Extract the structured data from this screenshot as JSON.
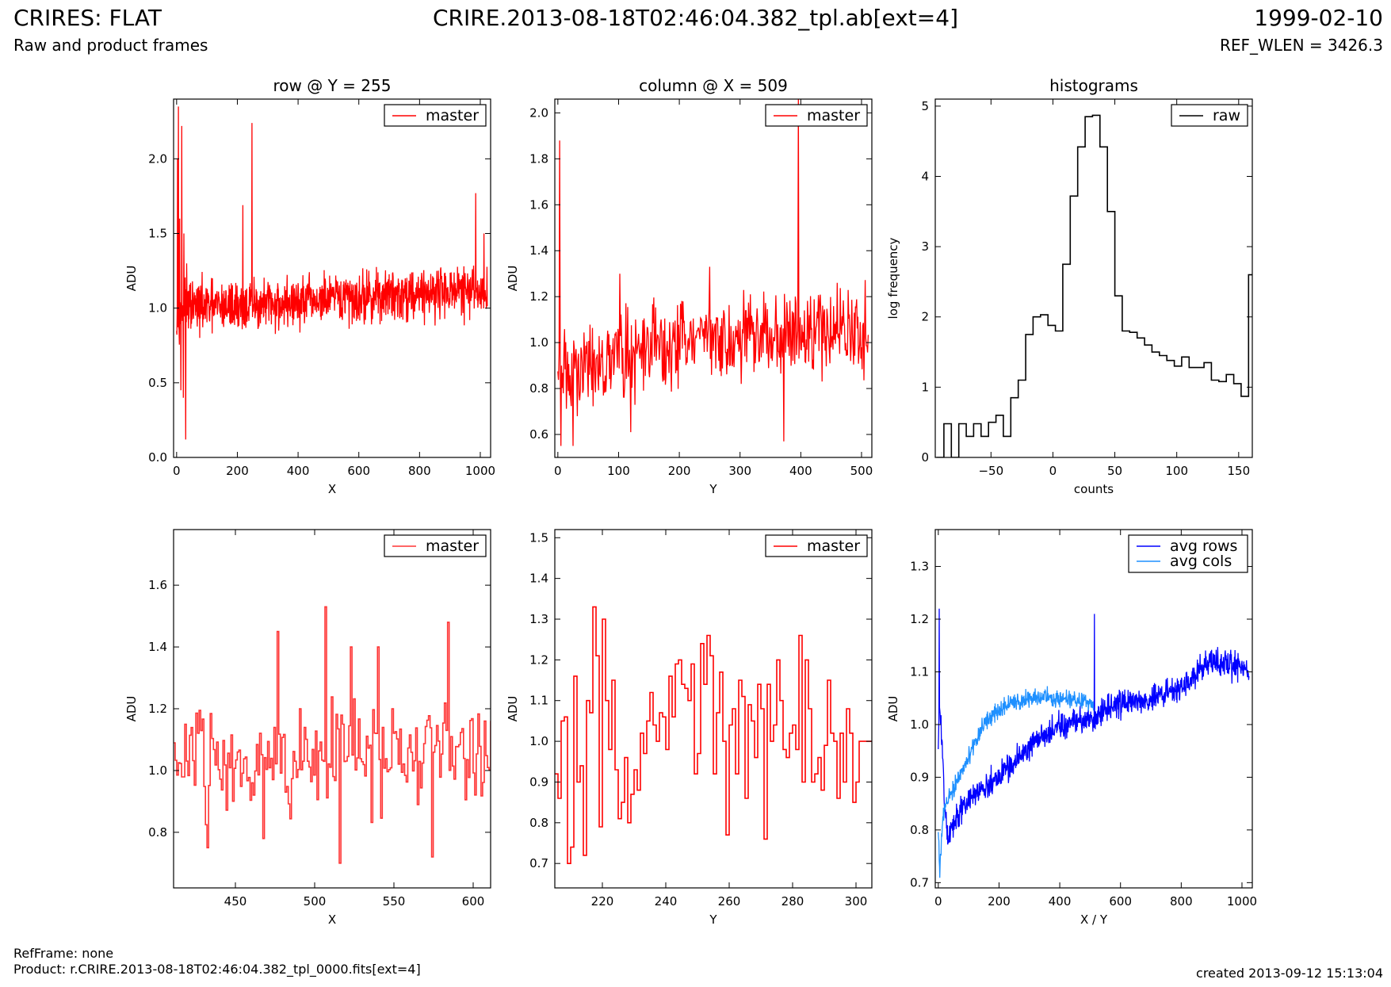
{
  "header": {
    "title": "CRIRES: FLAT",
    "subtitle": "Raw and product frames",
    "filename": "CRIRE.2013-08-18T02:46:04.382_tpl.ab[ext=4]",
    "date": "1999-02-10",
    "ref_wlen": "REF_WLEN = 3426.3"
  },
  "footer": {
    "refframe": "RefFrame: none",
    "product": "Product: r.CRIRE.2013-08-18T02:46:04.382_tpl_0000.fits[ext=4]",
    "created": "created 2013-09-12 15:13:04"
  },
  "colors": {
    "master": "#ff0000",
    "master_zoom": "#ff3333",
    "raw": "#000000",
    "avg_rows": "#0000ff",
    "avg_cols": "#1e90ff"
  },
  "chart_data": [
    {
      "type": "line",
      "title": "row @ Y = 255",
      "xlabel": "X",
      "ylabel": "ADU",
      "xlim": [
        -10,
        1034
      ],
      "ylim": [
        0.0,
        2.4
      ],
      "xticks": [
        0,
        200,
        400,
        600,
        800,
        1000
      ],
      "yticks": [
        0.0,
        0.5,
        1.0,
        1.5,
        2.0
      ],
      "legend_position": "top-right",
      "series": [
        {
          "name": "master",
          "color": "#ff0000",
          "style": "line",
          "x_range": [
            0,
            1023
          ],
          "n_points": 1024,
          "baseline": [
            [
              0,
              1.0
            ],
            [
              300,
              1.02
            ],
            [
              600,
              1.07
            ],
            [
              900,
              1.12
            ],
            [
              1023,
              1.1
            ]
          ],
          "noise": 0.12,
          "spikes": [
            [
              3,
              2.0
            ],
            [
              6,
              2.35
            ],
            [
              10,
              1.6
            ],
            [
              14,
              0.45
            ],
            [
              17,
              2.22
            ],
            [
              22,
              0.4
            ],
            [
              24,
              1.5
            ],
            [
              30,
              0.12
            ],
            [
              33,
              1.3
            ],
            [
              248,
              2.24
            ],
            [
              218,
              1.69
            ],
            [
              985,
              1.77
            ],
            [
              1012,
              1.5
            ]
          ]
        }
      ]
    },
    {
      "type": "line",
      "title": "column @ X = 509",
      "xlabel": "Y",
      "ylabel": "ADU",
      "xlim": [
        -5,
        517
      ],
      "ylim": [
        0.5,
        2.06
      ],
      "xticks": [
        0,
        100,
        200,
        300,
        400,
        500
      ],
      "yticks": [
        0.6,
        0.8,
        1.0,
        1.2,
        1.4,
        1.6,
        1.8,
        2.0
      ],
      "legend_position": "top-right",
      "series": [
        {
          "name": "master",
          "color": "#ff0000",
          "style": "line",
          "x_range": [
            0,
            511
          ],
          "n_points": 512,
          "baseline": [
            [
              0,
              0.85
            ],
            [
              100,
              0.95
            ],
            [
              200,
              1.0
            ],
            [
              300,
              1.02
            ],
            [
              400,
              1.05
            ],
            [
              511,
              1.05
            ]
          ],
          "noise": 0.13,
          "spikes": [
            [
              3,
              1.88
            ],
            [
              5,
              0.55
            ],
            [
              396,
              2.06
            ],
            [
              372,
              0.57
            ],
            [
              25,
              0.55
            ],
            [
              102,
              1.3
            ],
            [
              120,
              0.61
            ],
            [
              250,
              1.33
            ],
            [
              460,
              1.26
            ]
          ]
        }
      ]
    },
    {
      "type": "line",
      "title": "histograms",
      "xlabel": "counts",
      "ylabel": "log frequency",
      "xlim": [
        -95,
        161
      ],
      "ylim": [
        0,
        5.1
      ],
      "xticks": [
        -50,
        0,
        50,
        100,
        150
      ],
      "yticks": [
        0,
        1,
        2,
        3,
        4,
        5
      ],
      "legend_position": "top-right",
      "series": [
        {
          "name": "raw",
          "color": "#000000",
          "style": "steps",
          "x": [
            -94,
            -88,
            -82,
            -76,
            -70,
            -64,
            -58,
            -52,
            -46,
            -40,
            -34,
            -28,
            -22,
            -16,
            -10,
            -4,
            2,
            8,
            14,
            20,
            26,
            32,
            38,
            44,
            50,
            56,
            62,
            68,
            74,
            80,
            86,
            92,
            98,
            104,
            110,
            116,
            122,
            128,
            134,
            140,
            146,
            152,
            158
          ],
          "y": [
            0,
            0.48,
            0,
            0.48,
            0.3,
            0.48,
            0.3,
            0.5,
            0.6,
            0.3,
            0.85,
            1.1,
            1.75,
            2.0,
            2.03,
            1.88,
            1.8,
            2.75,
            3.72,
            4.42,
            4.85,
            4.87,
            4.42,
            3.5,
            2.3,
            1.8,
            1.78,
            1.7,
            1.6,
            1.5,
            1.45,
            1.38,
            1.3,
            1.43,
            1.28,
            1.28,
            1.35,
            1.1,
            1.08,
            1.18,
            1.05,
            0.87,
            2.6
          ]
        }
      ]
    },
    {
      "type": "line",
      "xlabel": "X",
      "ylabel": "ADU",
      "xlim": [
        411,
        611
      ],
      "ylim": [
        0.62,
        1.78
      ],
      "xticks": [
        450,
        500,
        550,
        600
      ],
      "yticks": [
        0.8,
        1.0,
        1.2,
        1.4,
        1.6
      ],
      "legend_position": "top-right",
      "series": [
        {
          "name": "master",
          "color": "#ff3333",
          "style": "steps",
          "x_range": [
            411,
            611
          ],
          "n_points": 200,
          "baseline": [
            [
              411,
              1.05
            ],
            [
              611,
              1.05
            ]
          ],
          "noise": 0.12,
          "spikes": [
            [
              432,
              0.75
            ],
            [
              476,
              1.45
            ],
            [
              506,
              1.53
            ],
            [
              516,
              0.7
            ],
            [
              574,
              0.72
            ],
            [
              584,
              1.48
            ],
            [
              467,
              0.78
            ],
            [
              523,
              1.4
            ],
            [
              540,
              1.4
            ]
          ]
        }
      ]
    },
    {
      "type": "line",
      "xlabel": "Y",
      "ylabel": "ADU",
      "xlim": [
        205,
        305
      ],
      "ylim": [
        0.64,
        1.52
      ],
      "xticks": [
        220,
        240,
        260,
        280,
        300
      ],
      "yticks": [
        0.7,
        0.8,
        0.9,
        1.0,
        1.1,
        1.2,
        1.3,
        1.4,
        1.5
      ],
      "legend_position": "top-right",
      "series": [
        {
          "name": "master",
          "color": "#ff0000",
          "style": "steps",
          "x": [
            205,
            206,
            207,
            208,
            209,
            210,
            211,
            212,
            213,
            214,
            215,
            216,
            217,
            218,
            219,
            220,
            221,
            222,
            223,
            224,
            225,
            226,
            227,
            228,
            229,
            230,
            231,
            232,
            233,
            234,
            235,
            236,
            237,
            238,
            239,
            240,
            241,
            242,
            243,
            244,
            245,
            246,
            247,
            248,
            249,
            250,
            251,
            252,
            253,
            254,
            255,
            256,
            257,
            258,
            259,
            260,
            261,
            262,
            263,
            264,
            265,
            266,
            267,
            268,
            269,
            270,
            271,
            272,
            273,
            274,
            275,
            276,
            277,
            278,
            279,
            280,
            281,
            282,
            283,
            284,
            285,
            286,
            287,
            288,
            289,
            290,
            291,
            292,
            293,
            294,
            295,
            296,
            297,
            298,
            299,
            300,
            301,
            302,
            303,
            304,
            305
          ],
          "y": [
            0.92,
            0.86,
            1.05,
            1.06,
            0.7,
            0.74,
            1.16,
            0.9,
            0.94,
            0.72,
            1.1,
            1.07,
            1.33,
            1.21,
            0.79,
            1.3,
            1.1,
            0.98,
            1.15,
            0.93,
            0.81,
            0.85,
            0.96,
            0.8,
            0.87,
            0.93,
            0.88,
            1.02,
            0.97,
            1.05,
            1.12,
            1.04,
            1.0,
            1.07,
            1.06,
            0.98,
            1.16,
            1.06,
            1.19,
            1.2,
            1.14,
            1.13,
            1.1,
            1.19,
            0.92,
            0.97,
            1.24,
            1.14,
            1.26,
            1.21,
            0.92,
            1.07,
            1.17,
            1.0,
            0.77,
            1.04,
            1.08,
            0.92,
            1.15,
            1.11,
            0.86,
            1.09,
            1.05,
            0.96,
            1.14,
            1.08,
            0.76,
            1.14,
            1.0,
            1.04,
            1.2,
            1.1,
            0.98,
            0.96,
            1.02,
            1.04,
            0.98,
            1.26,
            0.9,
            1.2,
            1.08,
            0.9,
            0.92,
            0.96,
            0.88,
            0.99,
            1.15,
            1.02,
            1.0,
            0.86,
            1.02,
            0.9,
            1.08,
            1.02,
            0.85,
            0.9,
            1.0,
            1.0,
            1.0,
            1.0,
            1.0
          ]
        }
      ]
    },
    {
      "type": "line",
      "xlabel": "X / Y",
      "ylabel": "ADU",
      "xlim": [
        -10,
        1034
      ],
      "ylim": [
        0.69,
        1.37
      ],
      "xticks": [
        0,
        200,
        400,
        600,
        800,
        1000
      ],
      "yticks": [
        0.7,
        0.8,
        0.9,
        1.0,
        1.1,
        1.2,
        1.3
      ],
      "legend_position": "top-right",
      "series": [
        {
          "name": "avg rows",
          "color": "#0000ff",
          "style": "line",
          "x_range": [
            0,
            1023
          ],
          "n_points": 1024,
          "baseline": [
            [
              0,
              0.97
            ],
            [
              5,
              1.03
            ],
            [
              12,
              0.98
            ],
            [
              20,
              0.86
            ],
            [
              30,
              0.78
            ],
            [
              60,
              0.82
            ],
            [
              100,
              0.86
            ],
            [
              200,
              0.9
            ],
            [
              300,
              0.96
            ],
            [
              400,
              1.0
            ],
            [
              500,
              1.01
            ],
            [
              600,
              1.04
            ],
            [
              700,
              1.05
            ],
            [
              800,
              1.07
            ],
            [
              900,
              1.12
            ],
            [
              1000,
              1.11
            ],
            [
              1023,
              1.09
            ]
          ],
          "noise": 0.018,
          "spikes": [
            [
              514,
              1.21
            ],
            [
              3,
              1.22
            ]
          ]
        },
        {
          "name": "avg cols",
          "color": "#1e90ff",
          "style": "line",
          "x_range": [
            0,
            511
          ],
          "n_points": 512,
          "baseline": [
            [
              0,
              0.8
            ],
            [
              5,
              0.72
            ],
            [
              10,
              0.78
            ],
            [
              20,
              0.84
            ],
            [
              50,
              0.88
            ],
            [
              100,
              0.94
            ],
            [
              150,
              1.0
            ],
            [
              200,
              1.03
            ],
            [
              300,
              1.05
            ],
            [
              400,
              1.05
            ],
            [
              511,
              1.04
            ]
          ],
          "noise": 0.012,
          "spikes": []
        }
      ]
    }
  ]
}
